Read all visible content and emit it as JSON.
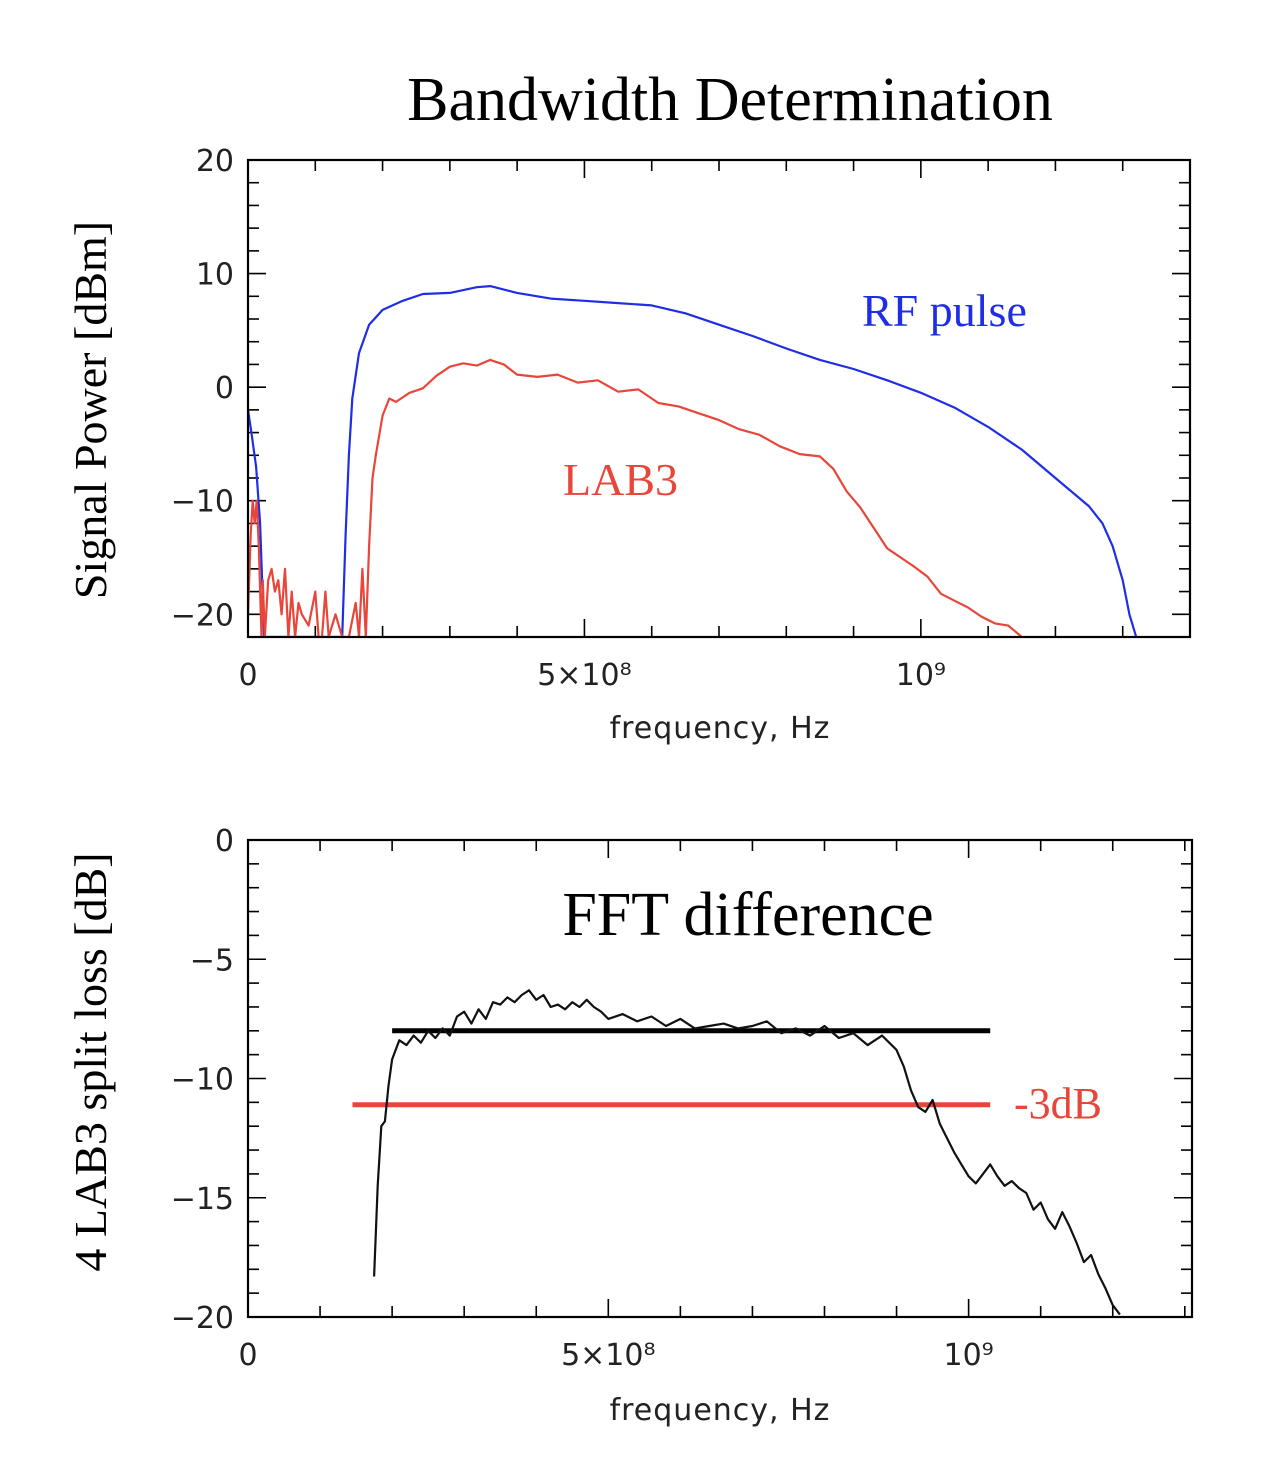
{
  "title": "Bandwidth Determination",
  "colors": {
    "rf_pulse": "#1f2ee6",
    "lab3": "#e8463a",
    "fft": "#111111",
    "minus3db": "#e8463a"
  },
  "chart_data": [
    {
      "type": "line",
      "ylabel": "Signal Power [dBm]",
      "xlabel": "frequency, Hz",
      "xlim": [
        0,
        1400000000
      ],
      "ylim": [
        -22,
        20
      ],
      "x_ticks": [
        {
          "value": 0,
          "label": "0"
        },
        {
          "value": 500000000,
          "label": "5×10⁸"
        },
        {
          "value": 1000000000,
          "label": "10⁹"
        }
      ],
      "y_ticks": [
        {
          "value": 20,
          "label": "20"
        },
        {
          "value": 10,
          "label": "10"
        },
        {
          "value": 0,
          "label": "0"
        },
        {
          "value": -10,
          "label": "−10"
        },
        {
          "value": -20,
          "label": "−20"
        }
      ],
      "annotations": [
        {
          "text": "RF pulse",
          "color": "#1f2ee6"
        },
        {
          "text": "LAB3",
          "color": "#e8463a"
        }
      ],
      "series": [
        {
          "color": "#1f2ee6",
          "x": [
            0,
            5000000,
            12000000,
            18000000,
            24000000,
            140000000,
            145000000,
            150000000,
            155000000,
            165000000,
            180000000,
            200000000,
            230000000,
            260000000,
            300000000,
            340000000,
            360000000,
            400000000,
            450000000,
            500000000,
            550000000,
            600000000,
            650000000,
            700000000,
            750000000,
            800000000,
            850000000,
            900000000,
            950000000,
            1000000000,
            1050000000,
            1100000000,
            1150000000,
            1200000000,
            1230000000,
            1250000000,
            1270000000,
            1285000000,
            1300000000,
            1310000000,
            1320000000
          ],
          "y": [
            -2,
            -4,
            -7,
            -12,
            -22,
            -22,
            -13,
            -6,
            -1,
            3,
            5.5,
            6.8,
            7.6,
            8.2,
            8.3,
            8.8,
            8.9,
            8.3,
            7.8,
            7.6,
            7.4,
            7.2,
            6.5,
            5.5,
            4.5,
            3.4,
            2.4,
            1.6,
            0.6,
            -0.5,
            -1.8,
            -3.5,
            -5.5,
            -8,
            -9.5,
            -10.5,
            -12,
            -14,
            -17,
            -20,
            -22
          ]
        },
        {
          "color": "#e8463a",
          "x": [
            0,
            4000000,
            7000000,
            10000000,
            13000000,
            16000000,
            20000000,
            22000000,
            25000000,
            30000000,
            35000000,
            40000000,
            45000000,
            50000000,
            55000000,
            60000000,
            65000000,
            70000000,
            75000000,
            80000000,
            90000000,
            100000000,
            105000000,
            110000000,
            115000000,
            120000000,
            130000000,
            140000000,
            150000000,
            160000000,
            165000000,
            170000000,
            175000000,
            180000000,
            185000000,
            190000000,
            200000000,
            210000000,
            220000000,
            240000000,
            260000000,
            280000000,
            300000000,
            320000000,
            340000000,
            360000000,
            380000000,
            400000000,
            430000000,
            460000000,
            490000000,
            520000000,
            550000000,
            580000000,
            610000000,
            640000000,
            670000000,
            700000000,
            730000000,
            760000000,
            790000000,
            820000000,
            850000000,
            870000000,
            890000000,
            910000000,
            930000000,
            950000000,
            970000000,
            990000000,
            1010000000,
            1030000000,
            1050000000,
            1070000000,
            1090000000,
            1110000000,
            1130000000,
            1140000000,
            1150000000
          ],
          "y": [
            -20,
            -13,
            -10,
            -12,
            -10,
            -14,
            -22,
            -17,
            -22,
            -17,
            -16,
            -18,
            -17,
            -20,
            -16,
            -22,
            -18,
            -22,
            -19,
            -20,
            -21,
            -18,
            -22,
            -22,
            -18,
            -22,
            -20,
            -22,
            -22,
            -19,
            -22,
            -16,
            -22,
            -14,
            -8,
            -6,
            -2.5,
            -1,
            -1.3,
            -0.5,
            -0.1,
            1.0,
            1.8,
            2.1,
            1.9,
            2.4,
            2.0,
            1.1,
            0.9,
            1.1,
            0.4,
            0.6,
            -0.4,
            -0.2,
            -1.4,
            -1.7,
            -2.3,
            -2.9,
            -3.7,
            -4.2,
            -5.2,
            -5.9,
            -6.1,
            -7.2,
            -9.2,
            -10.6,
            -12.4,
            -14.2,
            -15.0,
            -15.8,
            -16.7,
            -18.2,
            -18.8,
            -19.4,
            -20.2,
            -20.8,
            -21.0,
            -21.5,
            -22
          ]
        }
      ]
    },
    {
      "type": "line",
      "ylabel": "4 LAB3 split loss [dB]",
      "xlabel": "frequency, Hz",
      "xlim": [
        0,
        1310000000
      ],
      "ylim": [
        -20,
        0
      ],
      "x_ticks": [
        {
          "value": 0,
          "label": "0"
        },
        {
          "value": 500000000,
          "label": "5×10⁸"
        },
        {
          "value": 1000000000,
          "label": "10⁹"
        }
      ],
      "y_ticks": [
        {
          "value": 0,
          "label": "0"
        },
        {
          "value": -5,
          "label": "−5"
        },
        {
          "value": -10,
          "label": "−10"
        },
        {
          "value": -15,
          "label": "−15"
        },
        {
          "value": -20,
          "label": "−20"
        }
      ],
      "annotations": [
        {
          "text": "FFT difference",
          "color": "#000000"
        },
        {
          "text": "-3dB",
          "color": "#e8463a"
        }
      ],
      "reference_lines": [
        {
          "y": -8,
          "x": [
            200000000,
            1030000000
          ],
          "color": "#000000"
        },
        {
          "y": -11.1,
          "x": [
            145000000,
            1030000000
          ],
          "color": "#e8463a"
        }
      ],
      "series": [
        {
          "color": "#111111",
          "x": [
            175000000,
            180000000,
            185000000,
            190000000,
            195000000,
            200000000,
            210000000,
            220000000,
            230000000,
            240000000,
            250000000,
            260000000,
            270000000,
            280000000,
            290000000,
            300000000,
            310000000,
            320000000,
            330000000,
            340000000,
            350000000,
            360000000,
            370000000,
            380000000,
            390000000,
            400000000,
            410000000,
            420000000,
            430000000,
            440000000,
            450000000,
            460000000,
            470000000,
            480000000,
            490000000,
            500000000,
            520000000,
            540000000,
            560000000,
            580000000,
            600000000,
            620000000,
            640000000,
            660000000,
            680000000,
            700000000,
            720000000,
            740000000,
            760000000,
            780000000,
            800000000,
            820000000,
            840000000,
            860000000,
            880000000,
            900000000,
            910000000,
            920000000,
            930000000,
            940000000,
            950000000,
            960000000,
            970000000,
            980000000,
            990000000,
            1000000000,
            1010000000,
            1020000000,
            1030000000,
            1040000000,
            1050000000,
            1060000000,
            1070000000,
            1080000000,
            1090000000,
            1100000000,
            1110000000,
            1120000000,
            1130000000,
            1140000000,
            1150000000,
            1160000000,
            1170000000,
            1180000000,
            1190000000,
            1200000000,
            1210000000
          ],
          "y": [
            -18.3,
            -14.5,
            -12,
            -11.8,
            -10.3,
            -9.2,
            -8.4,
            -8.6,
            -8.2,
            -8.5,
            -8.0,
            -8.3,
            -7.9,
            -8.2,
            -7.4,
            -7.2,
            -7.7,
            -7.1,
            -7.5,
            -6.8,
            -6.9,
            -6.6,
            -6.8,
            -6.5,
            -6.3,
            -6.7,
            -6.5,
            -7.0,
            -6.9,
            -7.1,
            -6.8,
            -7.0,
            -6.7,
            -7.0,
            -7.2,
            -7.5,
            -7.3,
            -7.6,
            -7.4,
            -7.8,
            -7.5,
            -7.9,
            -7.8,
            -7.7,
            -7.9,
            -7.8,
            -7.6,
            -8.1,
            -7.9,
            -8.2,
            -7.8,
            -8.3,
            -8.1,
            -8.6,
            -8.2,
            -8.8,
            -9.5,
            -10.5,
            -11.2,
            -11.4,
            -10.9,
            -11.9,
            -12.5,
            -13.1,
            -13.6,
            -14.1,
            -14.4,
            -14.0,
            -13.6,
            -14.1,
            -14.5,
            -14.3,
            -14.6,
            -14.8,
            -15.5,
            -15.2,
            -15.9,
            -16.3,
            -15.6,
            -16.2,
            -16.9,
            -17.7,
            -17.4,
            -18.2,
            -18.8,
            -19.5,
            -19.9
          ]
        }
      ]
    }
  ]
}
